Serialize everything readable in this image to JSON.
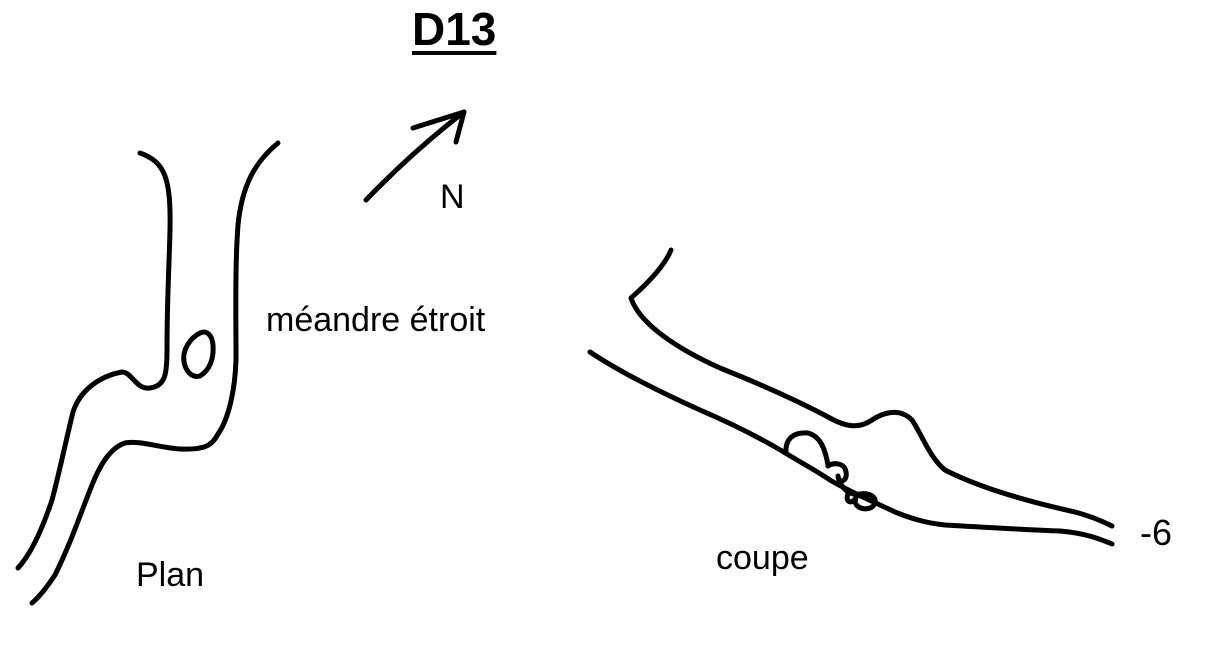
{
  "title": "D13",
  "north_label": "N",
  "passage_label": "méandre étroit",
  "plan_label": "Plan",
  "section_label": "coupe",
  "depth_label": "-6",
  "ink_color": "#000000",
  "background_color": "#ffffff"
}
